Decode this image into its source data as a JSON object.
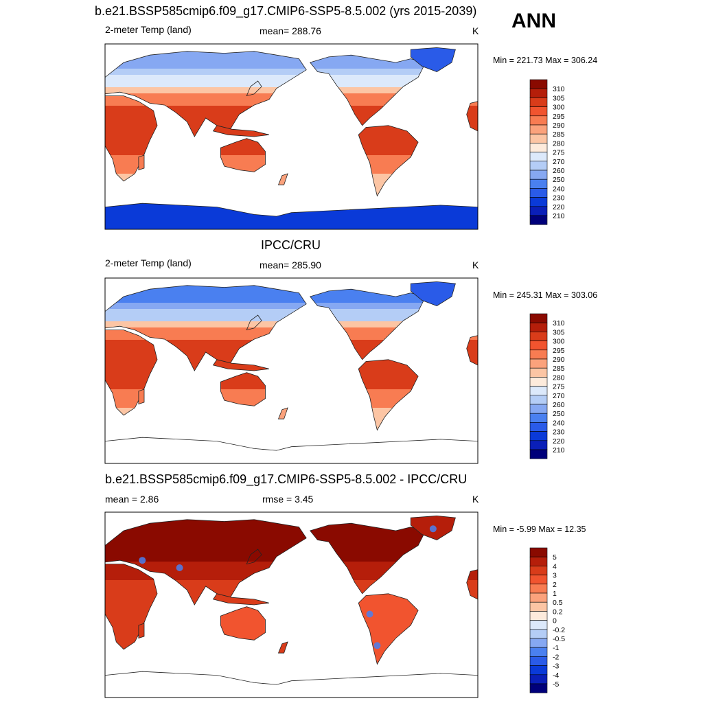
{
  "season": "ANN",
  "palette": {
    "temp": [
      "#00007a",
      "#0a1fb8",
      "#0a3ad8",
      "#2a5be8",
      "#4a80f0",
      "#86a8f2",
      "#b4cdf6",
      "#dce9fb",
      "#fdebdc",
      "#fcc5a4",
      "#fba27c",
      "#f87c52",
      "#f1542f",
      "#d93c1a",
      "#b51e0a",
      "#8a0a00"
    ],
    "diff": [
      "#00007a",
      "#0a1fb8",
      "#0a3ad8",
      "#2a5be8",
      "#4a80f0",
      "#86a8f2",
      "#b4cdf6",
      "#dce9fb",
      "#fdebdc",
      "#fcc5a4",
      "#fba27c",
      "#f87c52",
      "#f1542f",
      "#d93c1a",
      "#b51e0a",
      "#8a0a00"
    ],
    "coast": "#222222",
    "ocean": "#ffffff"
  },
  "panels": [
    {
      "id": "model",
      "title": "b.e21.BSSP585cmip6.f09_g17.CMIP6-SSP5-8.5.002 (yrs 2015-2039)",
      "left": "2-meter Temp (land)",
      "center": "mean= 288.76",
      "units": "K",
      "minmax": "Min = 221.73 Max = 306.24",
      "colorbar": [
        "310",
        "305",
        "300",
        "295",
        "290",
        "285",
        "280",
        "275",
        "270",
        "260",
        "250",
        "240",
        "230",
        "220",
        "210"
      ],
      "field": "model"
    },
    {
      "id": "obs",
      "title": "IPCC/CRU",
      "left": "2-meter Temp (land)",
      "center": "mean= 285.90",
      "units": "K",
      "minmax": "Min = 245.31 Max = 303.06",
      "colorbar": [
        "310",
        "305",
        "300",
        "295",
        "290",
        "285",
        "280",
        "275",
        "270",
        "260",
        "250",
        "240",
        "230",
        "220",
        "210"
      ],
      "field": "obs"
    },
    {
      "id": "diff",
      "title": "b.e21.BSSP585cmip6.f09_g17.CMIP6-SSP5-8.5.002 - IPCC/CRU",
      "left": "mean =   2.86",
      "center": "rmse =   3.45",
      "units": "K",
      "minmax": "Min =  -5.99 Max =  12.35",
      "colorbar": [
        "5",
        "4",
        "3",
        "2",
        "1",
        "0.5",
        "0.2",
        "0",
        "-0.2",
        "-0.5",
        "-1",
        "-2",
        "-3",
        "-4",
        "-5"
      ],
      "field": "diff"
    }
  ]
}
